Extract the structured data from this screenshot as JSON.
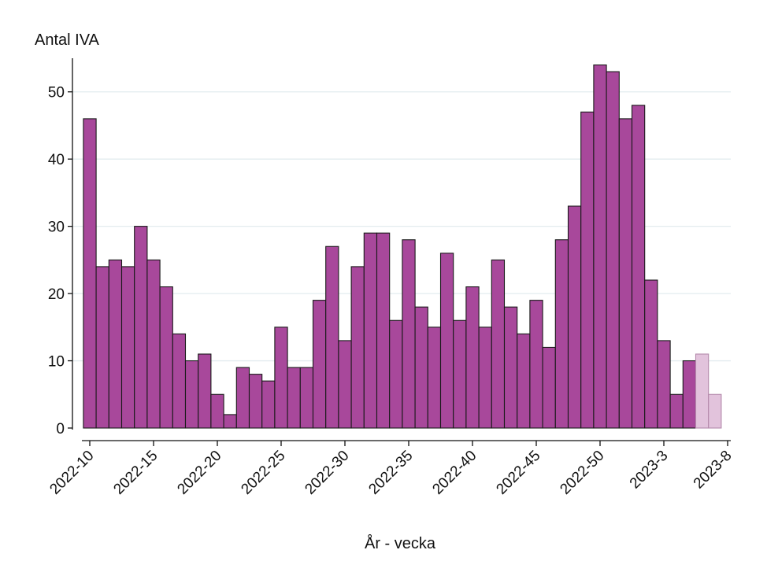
{
  "chart_data": {
    "type": "bar",
    "title": "",
    "ylabel": "Antal IVA",
    "xlabel": "År - vecka",
    "ylim": [
      0,
      55
    ],
    "yticks": [
      0,
      10,
      20,
      30,
      40,
      50
    ],
    "grid": true,
    "legend": "none",
    "colors": {
      "bar": "#a8489b",
      "bar_preliminary": "#e2c3dc",
      "bar_outline": "#1a1a1a",
      "grid": "#e3ecef",
      "axis": "#111111"
    },
    "x_tick_labels": [
      "2022-10",
      "2022-15",
      "2022-20",
      "2022-25",
      "2022-30",
      "2022-35",
      "2022-40",
      "2022-45",
      "2022-50",
      "2023-3",
      "2023-8"
    ],
    "categories": [
      "2022-10",
      "2022-11",
      "2022-12",
      "2022-13",
      "2022-14",
      "2022-15",
      "2022-16",
      "2022-17",
      "2022-18",
      "2022-19",
      "2022-20",
      "2022-21",
      "2022-22",
      "2022-23",
      "2022-24",
      "2022-25",
      "2022-26",
      "2022-27",
      "2022-28",
      "2022-29",
      "2022-30",
      "2022-31",
      "2022-32",
      "2022-33",
      "2022-34",
      "2022-35",
      "2022-36",
      "2022-37",
      "2022-38",
      "2022-39",
      "2022-40",
      "2022-41",
      "2022-42",
      "2022-43",
      "2022-44",
      "2022-45",
      "2022-46",
      "2022-47",
      "2022-48",
      "2022-49",
      "2022-50",
      "2022-51",
      "2022-52",
      "2023-1",
      "2023-2",
      "2023-3",
      "2023-4",
      "2023-5",
      "2023-6",
      "2023-7"
    ],
    "values": [
      46,
      24,
      25,
      24,
      30,
      25,
      21,
      14,
      10,
      11,
      5,
      2,
      9,
      8,
      7,
      15,
      9,
      9,
      19,
      27,
      13,
      24,
      29,
      29,
      16,
      28,
      18,
      15,
      26,
      16,
      21,
      15,
      25,
      18,
      14,
      19,
      12,
      28,
      33,
      47,
      54,
      53,
      46,
      48,
      22,
      13,
      5,
      10,
      11,
      5
    ],
    "preliminary": [
      false,
      false,
      false,
      false,
      false,
      false,
      false,
      false,
      false,
      false,
      false,
      false,
      false,
      false,
      false,
      false,
      false,
      false,
      false,
      false,
      false,
      false,
      false,
      false,
      false,
      false,
      false,
      false,
      false,
      false,
      false,
      false,
      false,
      false,
      false,
      false,
      false,
      false,
      false,
      false,
      false,
      false,
      false,
      false,
      false,
      false,
      false,
      false,
      true,
      true
    ]
  }
}
